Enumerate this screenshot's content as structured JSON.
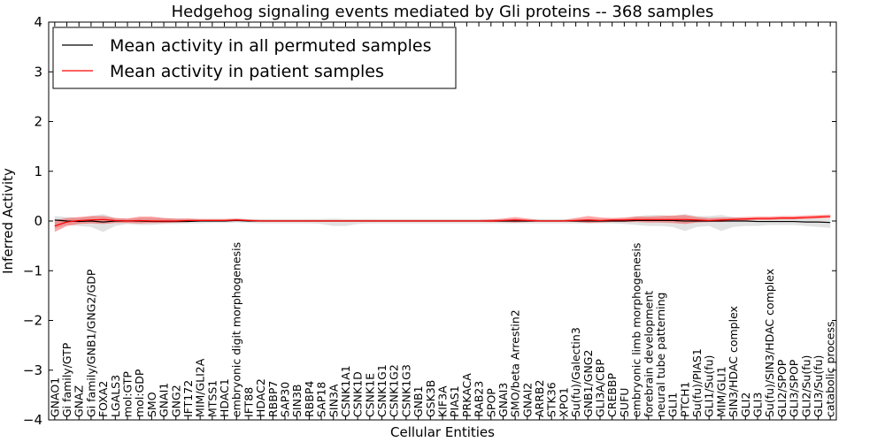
{
  "chart_data": {
    "type": "line",
    "title": "Hedgehog signaling events mediated by Gli proteins -- 368 samples",
    "xlabel": "Cellular Entities",
    "ylabel": "Inferred Activity",
    "ylim": [
      -4,
      4
    ],
    "yticks": [
      4,
      3,
      2,
      1,
      0,
      -1,
      -2,
      -3,
      -4
    ],
    "ytick_labels": [
      "4",
      "3",
      "2",
      "1",
      "0",
      "−1",
      "−2",
      "−3",
      "−4"
    ],
    "legend_position": "top-left",
    "categories": [
      "GNAO1",
      "Gi family/GTP",
      "GNAZ",
      "Gi family/GNB1/GNG2/GDP",
      "FOXA2",
      "LGALS3",
      "mol:GTP",
      "mol:GDP",
      "SMO",
      "GNAI1",
      "GNG2",
      "IFT172",
      "MIM/GLI2A",
      "MTSS1",
      "HDAC1",
      "embryonic digit morphogenesis",
      "IFT88",
      "HDAC2",
      "RBBP7",
      "SAP30",
      "SIN3B",
      "RBBP4",
      "SAP18",
      "SIN3A",
      "CSNK1A1",
      "CSNK1D",
      "CSNK1E",
      "CSNK1G1",
      "CSNK1G2",
      "CSNK1G3",
      "GNB1",
      "GSK3B",
      "KIF3A",
      "PIAS1",
      "PRKACA",
      "RAB23",
      "SPOP",
      "GNAI3",
      "SMO/beta Arrestin2",
      "GNAI2",
      "ARRB2",
      "STK36",
      "XPO1",
      "Su(fu)/Galectin3",
      "GNB1/GNG2",
      "GLI3A/CBP",
      "CREBBP",
      "SUFU",
      "embryonic limb morphogenesis",
      "forebrain development",
      "neural tube patterning",
      "GLI1",
      "PTCH1",
      "Su(fu)/PIAS1",
      "GLI1/Su(fu)",
      "MIM/GLI1",
      "SIN3/HDAC complex",
      "GLI2",
      "GLI3",
      "Su(fu)/SIN3/HDAC complex",
      "GLI2/SPOP",
      "GLI3/SPOP",
      "GLI2/Su(fu)",
      "GLI3/Su(fu)",
      "catabolic process"
    ],
    "series": [
      {
        "name": "Mean activity in all permuted samples",
        "color": "#000000",
        "values": [
          0.02,
          0.0,
          -0.01,
          0.0,
          -0.02,
          0.0,
          0.0,
          0.0,
          -0.01,
          -0.01,
          -0.01,
          -0.01,
          0.0,
          0.0,
          0.0,
          0.01,
          0.0,
          0.0,
          0.0,
          0.0,
          0.0,
          0.0,
          0.0,
          0.0,
          0.0,
          0.0,
          0.0,
          0.0,
          0.0,
          0.0,
          0.0,
          0.0,
          0.0,
          0.0,
          0.0,
          0.0,
          0.0,
          0.0,
          0.0,
          0.0,
          0.0,
          0.0,
          0.0,
          0.0,
          0.0,
          0.0,
          0.0,
          0.0,
          0.01,
          0.01,
          0.01,
          0.01,
          0.0,
          0.0,
          0.0,
          0.0,
          0.0,
          0.0,
          -0.01,
          -0.01,
          -0.01,
          -0.01,
          -0.02,
          -0.02,
          -0.03
        ],
        "band_low": [
          -0.15,
          -0.08,
          -0.1,
          -0.12,
          -0.22,
          -0.1,
          -0.06,
          -0.08,
          -0.08,
          -0.06,
          -0.06,
          -0.05,
          -0.05,
          -0.04,
          -0.04,
          -0.03,
          -0.04,
          -0.05,
          -0.05,
          -0.05,
          -0.05,
          -0.05,
          -0.06,
          -0.1,
          -0.1,
          -0.06,
          -0.05,
          -0.05,
          -0.05,
          -0.05,
          -0.05,
          -0.05,
          -0.05,
          -0.05,
          -0.05,
          -0.05,
          -0.05,
          -0.05,
          -0.05,
          -0.05,
          -0.05,
          -0.05,
          -0.05,
          -0.05,
          -0.05,
          -0.05,
          -0.05,
          -0.06,
          -0.08,
          -0.1,
          -0.1,
          -0.12,
          -0.2,
          -0.12,
          -0.1,
          -0.2,
          -0.12,
          -0.1,
          -0.1,
          -0.08,
          -0.08,
          -0.08,
          -0.1,
          -0.12,
          -0.14
        ],
        "band_high": [
          0.1,
          0.08,
          0.06,
          0.1,
          0.14,
          0.06,
          0.05,
          0.06,
          0.06,
          0.06,
          0.05,
          0.05,
          0.04,
          0.04,
          0.04,
          0.05,
          0.04,
          0.04,
          0.04,
          0.04,
          0.04,
          0.04,
          0.04,
          0.05,
          0.04,
          0.04,
          0.04,
          0.04,
          0.04,
          0.04,
          0.04,
          0.04,
          0.04,
          0.04,
          0.04,
          0.04,
          0.04,
          0.04,
          0.04,
          0.04,
          0.04,
          0.04,
          0.04,
          0.04,
          0.04,
          0.04,
          0.04,
          0.05,
          0.1,
          0.12,
          0.12,
          0.1,
          0.14,
          0.1,
          0.1,
          0.12,
          0.08,
          0.06,
          0.05,
          0.05,
          0.05,
          0.05,
          0.05,
          0.05,
          0.05
        ]
      },
      {
        "name": "Mean activity in patient samples",
        "color": "#ff0000",
        "values": [
          -0.1,
          -0.02,
          0.01,
          0.02,
          0.03,
          0.01,
          0.0,
          0.01,
          0.0,
          0.0,
          0.0,
          0.01,
          0.01,
          0.01,
          0.01,
          0.02,
          0.01,
          0.0,
          0.0,
          0.0,
          0.0,
          0.0,
          0.0,
          0.0,
          0.0,
          0.0,
          0.0,
          0.0,
          0.0,
          0.0,
          0.0,
          0.0,
          0.0,
          0.0,
          0.0,
          0.0,
          0.0,
          0.01,
          0.02,
          0.01,
          0.0,
          0.0,
          0.0,
          0.01,
          0.02,
          0.01,
          0.02,
          0.02,
          0.03,
          0.03,
          0.03,
          0.03,
          0.03,
          0.02,
          0.01,
          0.02,
          0.03,
          0.04,
          0.05,
          0.05,
          0.06,
          0.06,
          0.07,
          0.08,
          0.09
        ],
        "band_low": [
          -0.22,
          -0.1,
          -0.06,
          -0.05,
          -0.06,
          -0.04,
          -0.04,
          -0.05,
          -0.04,
          -0.04,
          -0.03,
          -0.02,
          -0.01,
          -0.01,
          -0.01,
          0.0,
          -0.01,
          -0.01,
          -0.01,
          -0.01,
          -0.01,
          -0.01,
          -0.01,
          -0.01,
          -0.01,
          -0.01,
          -0.01,
          -0.01,
          -0.01,
          -0.01,
          -0.01,
          -0.01,
          -0.01,
          -0.01,
          -0.01,
          -0.01,
          -0.02,
          -0.02,
          -0.03,
          -0.02,
          -0.01,
          -0.01,
          -0.01,
          -0.02,
          -0.04,
          -0.03,
          -0.02,
          -0.02,
          -0.02,
          -0.03,
          -0.03,
          -0.04,
          -0.06,
          -0.03,
          -0.02,
          -0.02,
          0.0,
          0.01,
          0.02,
          0.02,
          0.03,
          0.03,
          0.04,
          0.05,
          0.06
        ],
        "band_high": [
          0.02,
          0.06,
          0.08,
          0.1,
          0.1,
          0.06,
          0.05,
          0.09,
          0.09,
          0.06,
          0.05,
          0.05,
          0.04,
          0.04,
          0.04,
          0.05,
          0.03,
          0.02,
          0.02,
          0.02,
          0.02,
          0.02,
          0.02,
          0.02,
          0.02,
          0.02,
          0.02,
          0.02,
          0.02,
          0.02,
          0.02,
          0.02,
          0.02,
          0.02,
          0.02,
          0.02,
          0.03,
          0.05,
          0.08,
          0.05,
          0.02,
          0.02,
          0.02,
          0.06,
          0.1,
          0.07,
          0.06,
          0.07,
          0.09,
          0.09,
          0.1,
          0.11,
          0.12,
          0.08,
          0.06,
          0.07,
          0.07,
          0.08,
          0.09,
          0.09,
          0.1,
          0.1,
          0.11,
          0.12,
          0.13
        ]
      }
    ]
  }
}
